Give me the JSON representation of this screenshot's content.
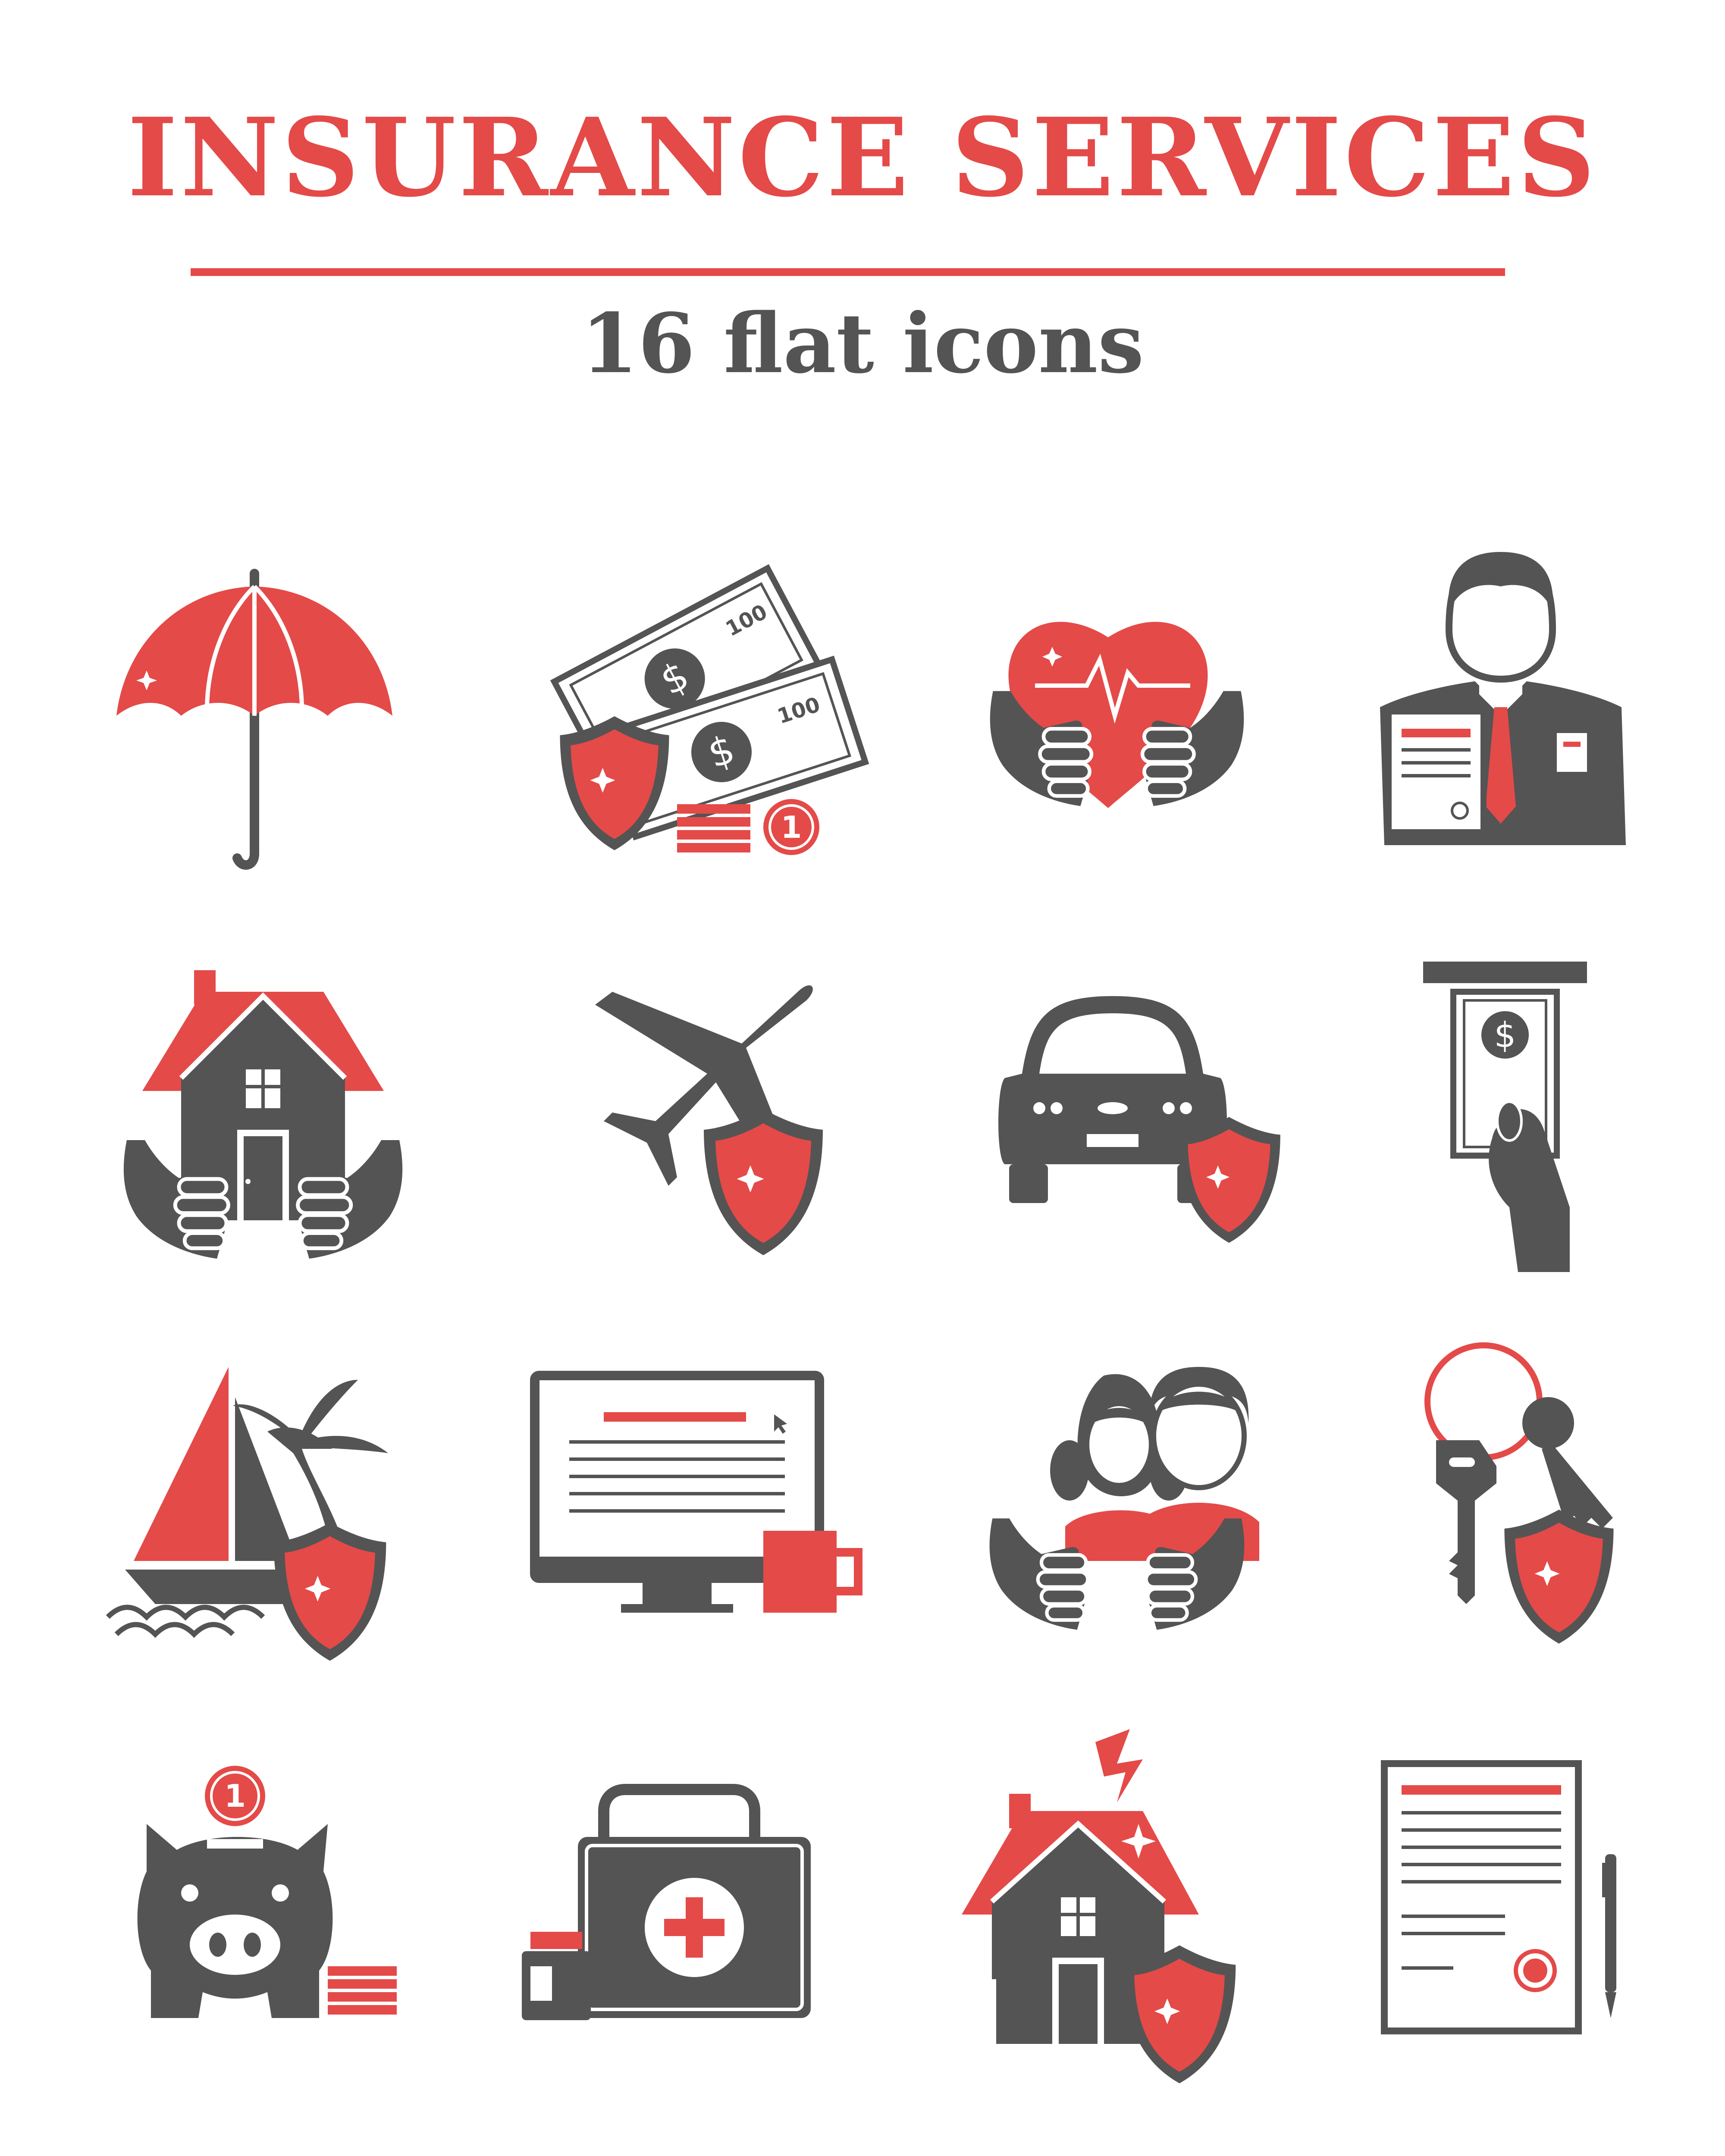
{
  "header": {
    "title": "INSURANCE SERVICES",
    "subtitle": "16 flat icons"
  },
  "colors": {
    "accent": "#e44a48",
    "dark": "#545454",
    "background": "#ffffff"
  },
  "icon_labels": {
    "banknote_value": "100",
    "coin_value": "1",
    "piggy_coin_value": "1",
    "dollar_sign": "$"
  },
  "icons": [
    "umbrella-icon",
    "money-shield-icon",
    "heart-in-hands-icon",
    "insurance-agent-icon",
    "house-in-hands-icon",
    "airplane-shield-icon",
    "car-shield-icon",
    "cash-withdrawal-icon",
    "travel-boat-palm-shield-icon",
    "computer-document-mug-icon",
    "children-in-hands-icon",
    "keys-shield-icon",
    "piggy-bank-icon",
    "first-aid-kit-icon",
    "house-damage-shield-icon",
    "signed-contract-pen-icon"
  ]
}
